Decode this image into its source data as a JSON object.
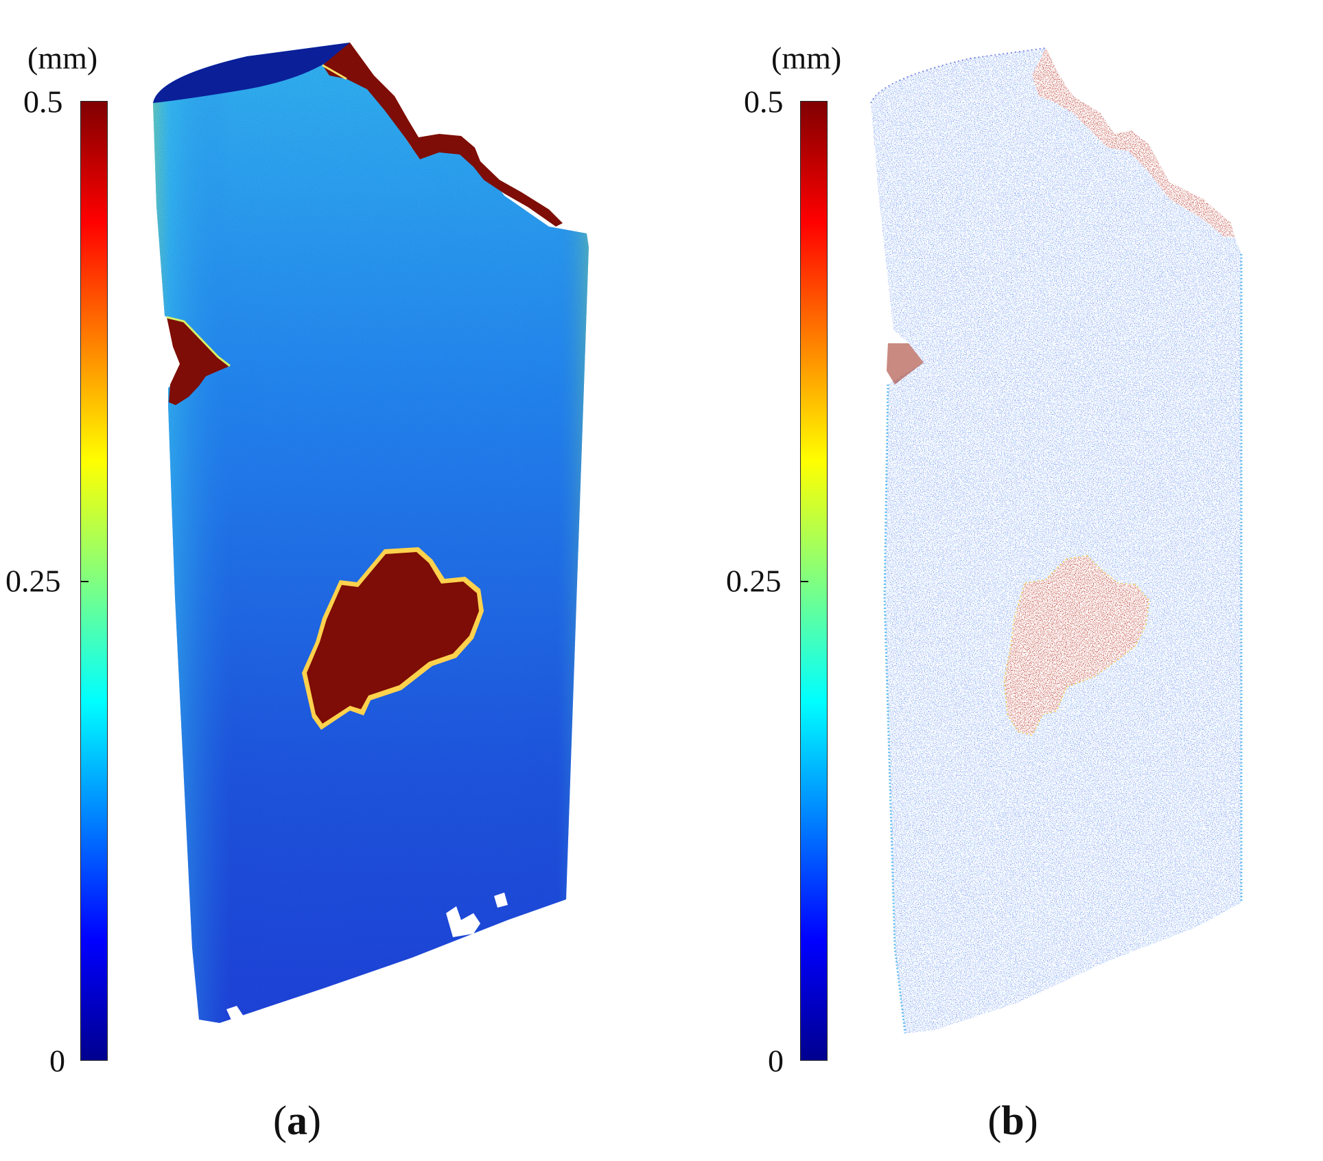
{
  "panels": [
    {
      "caption_letter": "a",
      "render_style": "dense",
      "colorbar": {
        "unit": "(mm)",
        "ticks": [
          "0.5",
          "0.25",
          "0"
        ],
        "colormap": "jet"
      }
    },
    {
      "caption_letter": "b",
      "render_style": "sparse",
      "colorbar": {
        "unit": "(mm)",
        "ticks": [
          "0.5",
          "0.25",
          "0"
        ],
        "colormap": "jet"
      }
    }
  ],
  "colors": {
    "body_deep": "#1a3fd6",
    "body_mid": "#1e8cf0",
    "body_light": "#36c8f2",
    "edge_green": "#8fe07a",
    "defect": "#7d0d06",
    "defect_rim": "#ffe066"
  }
}
